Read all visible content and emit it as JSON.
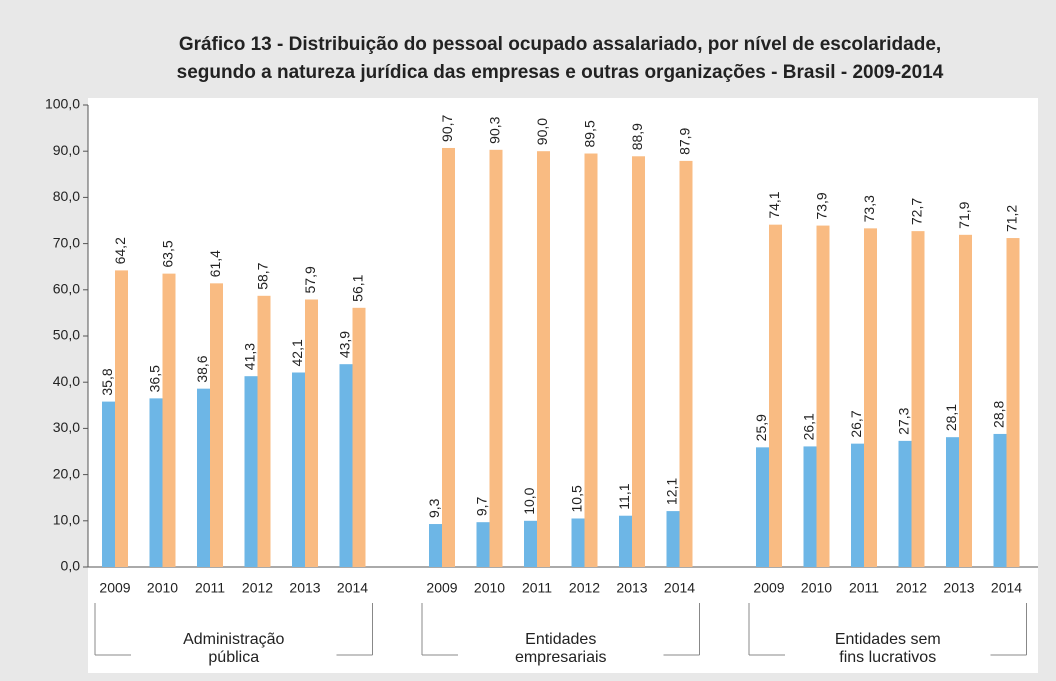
{
  "chart_data": {
    "type": "bar",
    "title": [
      "Gráfico 13 - Distribuição do pessoal ocupado assalariado, por nível de escolaridade,",
      "segundo a natureza jurídica das empresas e outras organizações - Brasil - 2009-2014"
    ],
    "groups": [
      {
        "label": [
          "Administração",
          "pública"
        ],
        "categories": [
          "2009",
          "2010",
          "2011",
          "2012",
          "2013",
          "2014"
        ]
      },
      {
        "label": [
          "Entidades",
          "empresariais"
        ],
        "categories": [
          "2009",
          "2010",
          "2011",
          "2012",
          "2013",
          "2014"
        ]
      },
      {
        "label": [
          "Entidades sem",
          "fins lucrativos"
        ],
        "categories": [
          "2009",
          "2010",
          "2011",
          "2012",
          "2013",
          "2014"
        ]
      }
    ],
    "series": [
      {
        "color": "#6db6e6",
        "values": [
          35.8,
          36.5,
          38.6,
          41.3,
          42.1,
          43.9,
          9.3,
          9.7,
          10.0,
          10.5,
          11.1,
          12.1,
          25.9,
          26.1,
          26.7,
          27.3,
          28.1,
          28.8
        ],
        "value_labels": [
          "35,8",
          "36,5",
          "38,6",
          "41,3",
          "42,1",
          "43,9",
          "9,3",
          "9,7",
          "10,0",
          "10,5",
          "11,1",
          "12,1",
          "25,9",
          "26,1",
          "26,7",
          "27,3",
          "28,1",
          "28,8"
        ]
      },
      {
        "color": "#f9bb82",
        "values": [
          64.2,
          63.5,
          61.4,
          58.7,
          57.9,
          56.1,
          90.7,
          90.3,
          90.0,
          89.5,
          88.9,
          87.9,
          74.1,
          73.9,
          73.3,
          72.7,
          71.9,
          71.2
        ],
        "value_labels": [
          "64,2",
          "63,5",
          "61,4",
          "58,7",
          "57,9",
          "56,1",
          "90,7",
          "90,3",
          "90,0",
          "89,5",
          "88,9",
          "87,9",
          "74,1",
          "73,9",
          "73,3",
          "72,7",
          "71,9",
          "71,2"
        ]
      }
    ],
    "ylim": [
      0,
      100
    ],
    "yticks": [
      {
        "value": 0,
        "label": "0,0"
      },
      {
        "value": 10,
        "label": "10,0"
      },
      {
        "value": 20,
        "label": "20,0"
      },
      {
        "value": 30,
        "label": "30,0"
      },
      {
        "value": 40,
        "label": "40,0"
      },
      {
        "value": 50,
        "label": "50,0"
      },
      {
        "value": 60,
        "label": "60,0"
      },
      {
        "value": 70,
        "label": "70,0"
      },
      {
        "value": 80,
        "label": "80,0"
      },
      {
        "value": 90,
        "label": "90,0"
      },
      {
        "value": 100,
        "label": "100,0"
      }
    ]
  }
}
